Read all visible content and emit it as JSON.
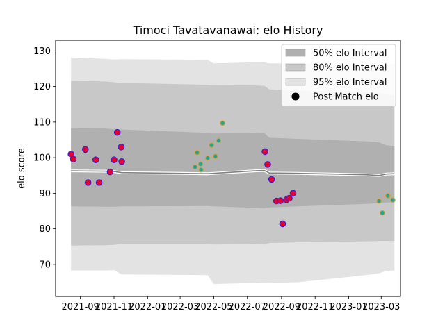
{
  "chart_data": {
    "type": "line",
    "title": "Timoci Tavatavanawai: elo History",
    "xlabel": "",
    "ylabel": "elo score",
    "x_domain": [
      "2021-07-18",
      "2023-04-05"
    ],
    "ylim": [
      61,
      133
    ],
    "x_ticks": [
      {
        "date": "2021-09-01",
        "label": "2021-09"
      },
      {
        "date": "2021-11-01",
        "label": "2021-11"
      },
      {
        "date": "2022-01-01",
        "label": "2022-01"
      },
      {
        "date": "2022-03-01",
        "label": "2022-03"
      },
      {
        "date": "2022-05-01",
        "label": "2022-05"
      },
      {
        "date": "2022-07-01",
        "label": "2022-07"
      },
      {
        "date": "2022-09-01",
        "label": "2022-09"
      },
      {
        "date": "2022-11-01",
        "label": "2022-11"
      },
      {
        "date": "2023-01-01",
        "label": "2023-01"
      },
      {
        "date": "2023-03-01",
        "label": "2023-03"
      }
    ],
    "y_ticks": [
      70,
      80,
      90,
      100,
      110,
      120,
      130
    ],
    "legend_placement": "top-right",
    "legend": [
      {
        "label": "50% elo Interval",
        "kind": "band",
        "color": "#b0b0b0"
      },
      {
        "label": "80% elo Interval",
        "kind": "band",
        "color": "#c8c8c8"
      },
      {
        "label": "95% elo Interval",
        "kind": "band",
        "color": "#e3e3e3"
      },
      {
        "label": "Post Match elo",
        "kind": "marker",
        "color": "#000000"
      }
    ],
    "colors": {
      "band95": "#e3e3e3",
      "band80": "#c8c8c8",
      "band50": "#b0b0b0",
      "mean_line": "#808080",
      "marker_face_a": "#e8002a",
      "marker_edge_a": "#3a1fd0",
      "marker_face_b": "#1fa59b",
      "marker_edge_b": "#e0a030"
    },
    "bands": {
      "x": [
        "2021-08-15",
        "2021-10-15",
        "2021-11-01",
        "2021-11-15",
        "2022-04-20",
        "2022-05-01",
        "2022-07-15",
        "2022-08-01",
        "2022-08-10",
        "2022-10-01",
        "2023-02-01",
        "2023-02-25",
        "2023-03-10",
        "2023-03-25"
      ],
      "mean": [
        96.3,
        96.2,
        96.1,
        95.8,
        95.5,
        95.6,
        96.3,
        96.4,
        95.7,
        95.6,
        95.2,
        95.0,
        95.4,
        95.5
      ],
      "lower50": [
        86.3,
        86.2,
        86.2,
        86.3,
        86.4,
        86.3,
        85.9,
        85.8,
        86.0,
        86.3,
        87.0,
        87.2,
        87.4,
        87.5
      ],
      "upper50": [
        108.3,
        108.2,
        108.0,
        107.9,
        107.0,
        106.8,
        107.0,
        106.9,
        105.6,
        105.3,
        104.6,
        104.3,
        103.5,
        103.3
      ],
      "lower80": [
        75.3,
        75.4,
        75.5,
        75.8,
        75.8,
        75.6,
        75.8,
        75.6,
        76.0,
        76.2,
        76.5,
        76.6,
        76.6,
        76.6
      ],
      "upper80": [
        121.6,
        121.4,
        121.2,
        121.0,
        120.5,
        120.4,
        120.3,
        120.2,
        119.2,
        118.9,
        118.4,
        118.2,
        117.8,
        117.5
      ],
      "lower95": [
        68.3,
        68.3,
        68.4,
        67.2,
        67.0,
        64.5,
        64.8,
        64.9,
        64.8,
        65.0,
        67.0,
        67.5,
        68.2,
        68.3
      ],
      "upper95": [
        128.2,
        127.8,
        127.6,
        127.7,
        127.5,
        126.5,
        126.8,
        126.8,
        126.5,
        126.5,
        126.2,
        126.2,
        126.2,
        126.3
      ]
    },
    "series": [
      {
        "name": "Post Match elo",
        "style": "a",
        "x": [
          "2021-08-15",
          "2021-08-19",
          "2021-09-10",
          "2021-09-15",
          "2021-09-29",
          "2021-10-05",
          "2021-10-25",
          "2021-11-01",
          "2021-11-07",
          "2021-11-14",
          "2021-11-15"
        ],
        "y": [
          101.0,
          99.6,
          102.3,
          93.0,
          99.4,
          93.0,
          96.0,
          99.4,
          107.1,
          103.0,
          98.9
        ]
      },
      {
        "name": "",
        "style": "b",
        "x": [
          "2022-03-28",
          "2022-04-01",
          "2022-04-07",
          "2022-04-08",
          "2022-04-20",
          "2022-04-27",
          "2022-05-04",
          "2022-05-10",
          "2022-05-17"
        ],
        "y": [
          97.4,
          101.4,
          98.2,
          96.6,
          99.9,
          103.5,
          100.4,
          104.8,
          109.7
        ]
      },
      {
        "name": "",
        "style": "a",
        "x": [
          "2022-08-02",
          "2022-08-07",
          "2022-08-14",
          "2022-08-23",
          "2022-08-30",
          "2022-09-03",
          "2022-09-10",
          "2022-09-15",
          "2022-09-22"
        ],
        "y": [
          101.7,
          98.1,
          93.9,
          87.8,
          87.9,
          81.4,
          88.2,
          88.6,
          90.0
        ]
      },
      {
        "name": "",
        "style": "b",
        "x": [
          "2023-02-25",
          "2023-03-03",
          "2023-03-13",
          "2023-03-22"
        ],
        "y": [
          87.8,
          84.5,
          89.3,
          88.1
        ]
      }
    ]
  }
}
